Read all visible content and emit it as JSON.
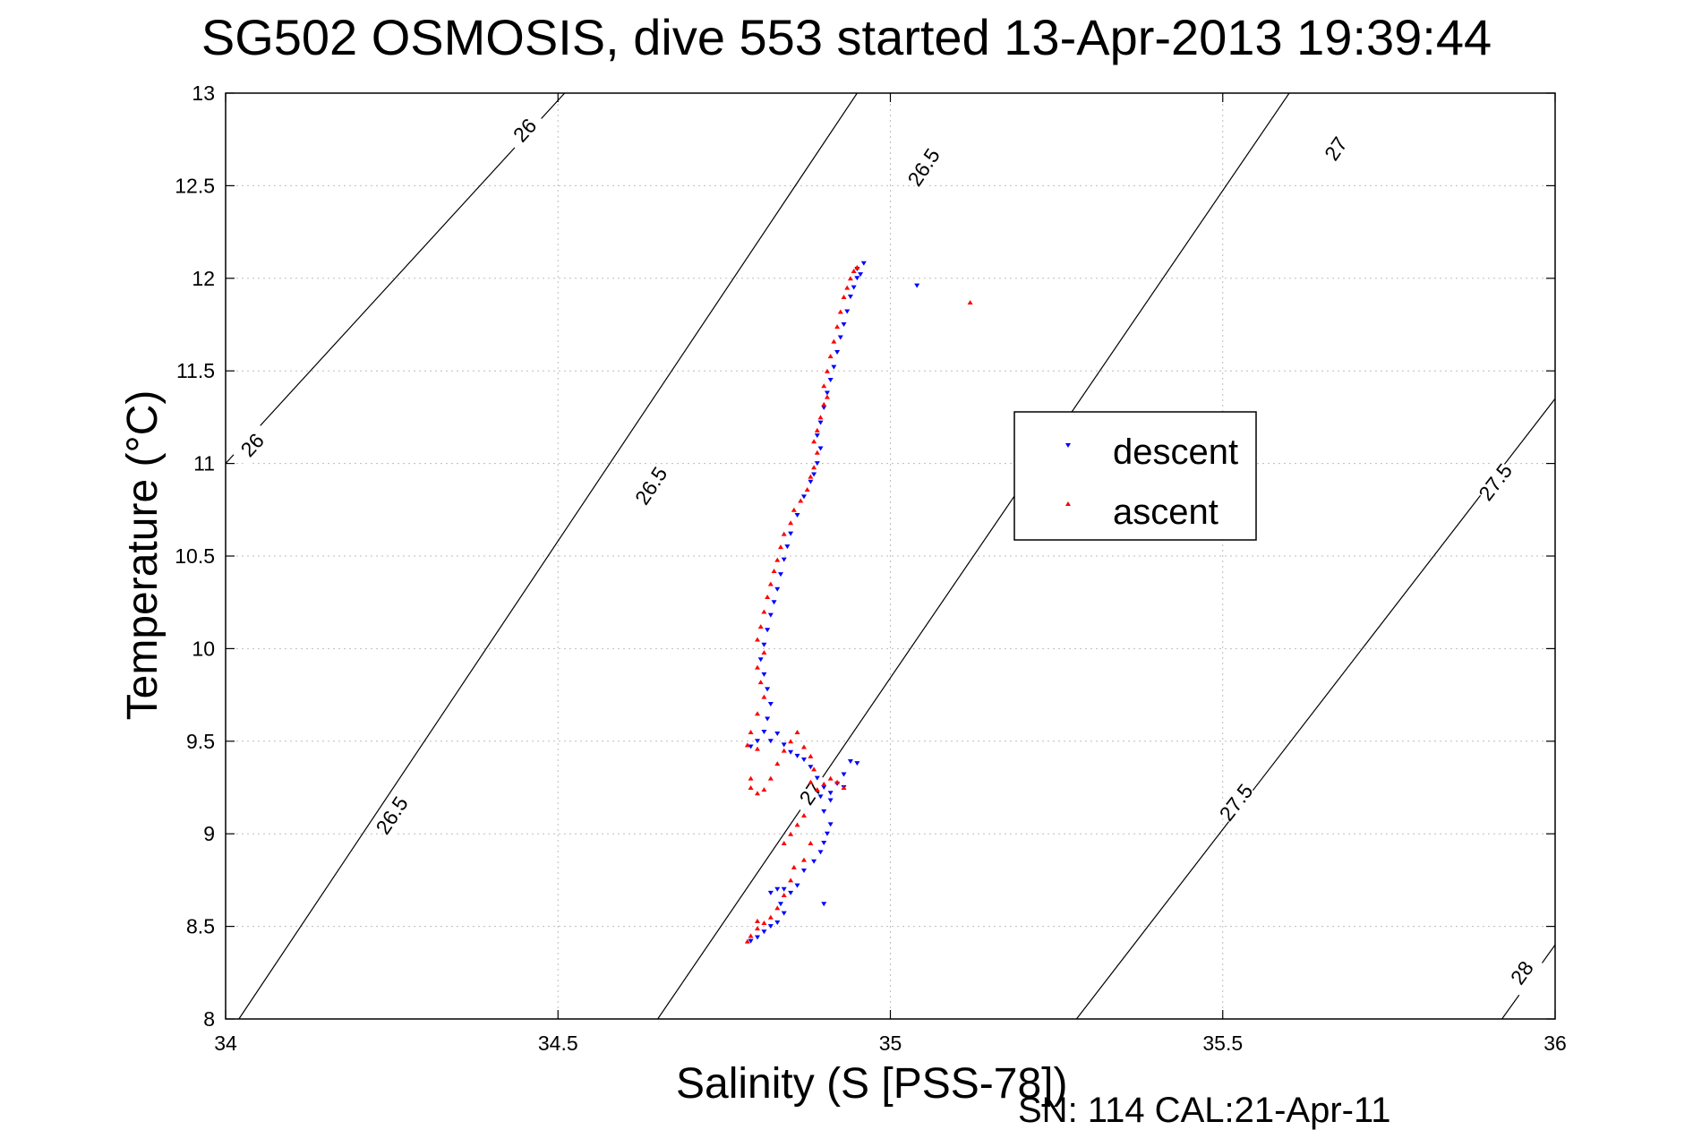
{
  "title": "SG502 OSMOSIS, dive 553 started 13-Apr-2013 19:39:44",
  "footer": "SN: 114  CAL:21-Apr-11",
  "colors": {
    "descent": "#0000ff",
    "ascent": "#ff0000",
    "axis": "#000000",
    "grid": "#bdbdbd",
    "contour": "#000000"
  },
  "chart_data": {
    "type": "scatter",
    "xlabel": "Salinity (S [PSS-78])",
    "ylabel": "Temperature (°C)",
    "xlim": [
      34,
      36
    ],
    "ylim": [
      8,
      13
    ],
    "xticks": [
      34,
      34.5,
      35,
      35.5,
      36
    ],
    "xtick_labels": [
      "34",
      "34.5",
      "35",
      "35.5",
      "36"
    ],
    "yticks": [
      8,
      8.5,
      9,
      9.5,
      10,
      10.5,
      11,
      11.5,
      12,
      12.5,
      13
    ],
    "ytick_labels": [
      "8",
      "8.5",
      "9",
      "9.5",
      "10",
      "10.5",
      "11",
      "11.5",
      "12",
      "12.5",
      "13"
    ],
    "grid": true,
    "legend_position": "right-center",
    "density_contours": [
      {
        "sigma": "26",
        "line": [
          [
            34.0,
            11.0
          ],
          [
            34.51,
            13.0
          ]
        ],
        "labels": [
          {
            "text": "26",
            "x": 34.04,
            "y": 11.1
          },
          {
            "text": "26",
            "x": 34.45,
            "y": 12.8
          }
        ]
      },
      {
        "sigma": "26.5",
        "line": [
          [
            34.02,
            8.0
          ],
          [
            34.95,
            13.0
          ]
        ],
        "labels": [
          {
            "text": "26.5",
            "x": 34.25,
            "y": 9.1
          },
          {
            "text": "26.5",
            "x": 34.64,
            "y": 10.88
          },
          {
            "text": "26.5",
            "x": 35.05,
            "y": 12.6
          }
        ]
      },
      {
        "sigma": "27",
        "line": [
          [
            34.65,
            8.0
          ],
          [
            35.6,
            13.0
          ]
        ],
        "labels": [
          {
            "text": "27",
            "x": 34.88,
            "y": 9.22
          },
          {
            "text": "27",
            "x": 35.67,
            "y": 12.7
          }
        ]
      },
      {
        "sigma": "27.5",
        "line": [
          [
            35.28,
            8.0
          ],
          [
            36.0,
            11.35
          ]
        ],
        "labels": [
          {
            "text": "27.5",
            "x": 35.52,
            "y": 9.17
          },
          {
            "text": "27.5",
            "x": 35.91,
            "y": 10.9
          }
        ]
      },
      {
        "sigma": "28",
        "line": [
          [
            35.92,
            8.0
          ],
          [
            36.0,
            8.4
          ]
        ],
        "labels": [
          {
            "text": "28",
            "x": 35.95,
            "y": 8.25
          }
        ]
      }
    ],
    "series": [
      {
        "name": "descent",
        "marker": "triangle-down",
        "points": [
          [
            34.96,
            12.08
          ],
          [
            34.95,
            12.05
          ],
          [
            34.955,
            12.02
          ],
          [
            34.95,
            12.0
          ],
          [
            34.945,
            11.95
          ],
          [
            34.94,
            11.9
          ],
          [
            34.935,
            11.82
          ],
          [
            34.93,
            11.75
          ],
          [
            34.925,
            11.68
          ],
          [
            34.92,
            11.6
          ],
          [
            34.915,
            11.52
          ],
          [
            34.91,
            11.45
          ],
          [
            34.905,
            11.38
          ],
          [
            34.9,
            11.3
          ],
          [
            34.895,
            11.22
          ],
          [
            34.89,
            11.15
          ],
          [
            34.895,
            11.08
          ],
          [
            34.89,
            11.0
          ],
          [
            34.885,
            10.94
          ],
          [
            34.88,
            10.9
          ],
          [
            34.87,
            10.82
          ],
          [
            34.86,
            10.72
          ],
          [
            34.85,
            10.62
          ],
          [
            34.845,
            10.55
          ],
          [
            34.84,
            10.48
          ],
          [
            34.835,
            10.4
          ],
          [
            34.83,
            10.32
          ],
          [
            34.825,
            10.25
          ],
          [
            34.82,
            10.18
          ],
          [
            34.815,
            10.1
          ],
          [
            34.81,
            10.02
          ],
          [
            34.805,
            9.94
          ],
          [
            34.81,
            9.86
          ],
          [
            34.815,
            9.78
          ],
          [
            34.82,
            9.7
          ],
          [
            34.815,
            9.62
          ],
          [
            34.81,
            9.55
          ],
          [
            34.8,
            9.5
          ],
          [
            34.79,
            9.47
          ],
          [
            34.82,
            9.5
          ],
          [
            34.83,
            9.54
          ],
          [
            34.84,
            9.48
          ],
          [
            34.85,
            9.44
          ],
          [
            34.86,
            9.42
          ],
          [
            34.87,
            9.4
          ],
          [
            34.88,
            9.36
          ],
          [
            34.89,
            9.3
          ],
          [
            34.9,
            9.25
          ],
          [
            34.91,
            9.22
          ],
          [
            34.92,
            9.27
          ],
          [
            34.93,
            9.32
          ],
          [
            34.94,
            9.39
          ],
          [
            34.95,
            9.38
          ],
          [
            34.93,
            9.25
          ],
          [
            34.91,
            9.18
          ],
          [
            34.895,
            9.2
          ],
          [
            34.9,
            9.12
          ],
          [
            34.91,
            9.05
          ],
          [
            34.905,
            9.0
          ],
          [
            34.9,
            8.95
          ],
          [
            34.895,
            8.9
          ],
          [
            34.885,
            8.85
          ],
          [
            34.87,
            8.8
          ],
          [
            34.86,
            8.72
          ],
          [
            34.85,
            8.68
          ],
          [
            34.84,
            8.7
          ],
          [
            34.83,
            8.7
          ],
          [
            34.82,
            8.68
          ],
          [
            34.835,
            8.62
          ],
          [
            34.84,
            8.57
          ],
          [
            34.83,
            8.52
          ],
          [
            34.82,
            8.5
          ],
          [
            34.81,
            8.47
          ],
          [
            34.8,
            8.44
          ],
          [
            34.79,
            8.42
          ],
          [
            34.9,
            8.62
          ],
          [
            35.04,
            11.96
          ]
        ]
      },
      {
        "name": "ascent",
        "marker": "triangle-up",
        "points": [
          [
            34.95,
            12.06
          ],
          [
            34.945,
            12.04
          ],
          [
            34.94,
            12.0
          ],
          [
            34.935,
            11.95
          ],
          [
            34.93,
            11.9
          ],
          [
            34.925,
            11.82
          ],
          [
            34.92,
            11.74
          ],
          [
            34.915,
            11.66
          ],
          [
            34.91,
            11.58
          ],
          [
            34.905,
            11.5
          ],
          [
            34.9,
            11.42
          ],
          [
            34.905,
            11.36
          ],
          [
            34.9,
            11.32
          ],
          [
            34.895,
            11.25
          ],
          [
            34.89,
            11.18
          ],
          [
            34.885,
            11.12
          ],
          [
            34.89,
            11.06
          ],
          [
            34.885,
            10.98
          ],
          [
            34.88,
            10.93
          ],
          [
            34.875,
            10.86
          ],
          [
            34.865,
            10.8
          ],
          [
            34.855,
            10.75
          ],
          [
            34.85,
            10.68
          ],
          [
            34.84,
            10.62
          ],
          [
            34.835,
            10.55
          ],
          [
            34.83,
            10.48
          ],
          [
            34.825,
            10.42
          ],
          [
            34.82,
            10.35
          ],
          [
            34.815,
            10.28
          ],
          [
            34.81,
            10.2
          ],
          [
            34.805,
            10.12
          ],
          [
            34.8,
            10.05
          ],
          [
            34.81,
            9.98
          ],
          [
            34.8,
            9.9
          ],
          [
            34.805,
            9.82
          ],
          [
            34.81,
            9.74
          ],
          [
            34.8,
            9.65
          ],
          [
            34.79,
            9.55
          ],
          [
            34.785,
            9.48
          ],
          [
            34.8,
            9.46
          ],
          [
            34.79,
            9.3
          ],
          [
            34.79,
            9.25
          ],
          [
            34.8,
            9.22
          ],
          [
            34.81,
            9.24
          ],
          [
            34.82,
            9.3
          ],
          [
            34.83,
            9.38
          ],
          [
            34.84,
            9.45
          ],
          [
            34.85,
            9.5
          ],
          [
            34.86,
            9.55
          ],
          [
            34.87,
            9.47
          ],
          [
            34.88,
            9.42
          ],
          [
            34.885,
            9.35
          ],
          [
            34.88,
            9.28
          ],
          [
            34.89,
            9.24
          ],
          [
            34.9,
            9.27
          ],
          [
            34.91,
            9.3
          ],
          [
            34.92,
            9.28
          ],
          [
            34.93,
            9.25
          ],
          [
            34.87,
            9.1
          ],
          [
            34.86,
            9.05
          ],
          [
            34.85,
            9.0
          ],
          [
            34.84,
            8.95
          ],
          [
            34.88,
            8.95
          ],
          [
            34.87,
            8.86
          ],
          [
            34.855,
            8.82
          ],
          [
            34.85,
            8.75
          ],
          [
            34.84,
            8.67
          ],
          [
            34.83,
            8.6
          ],
          [
            34.82,
            8.55
          ],
          [
            34.81,
            8.52
          ],
          [
            34.8,
            8.49
          ],
          [
            34.79,
            8.45
          ],
          [
            34.785,
            8.42
          ],
          [
            34.8,
            8.53
          ],
          [
            35.12,
            11.87
          ]
        ]
      }
    ]
  }
}
